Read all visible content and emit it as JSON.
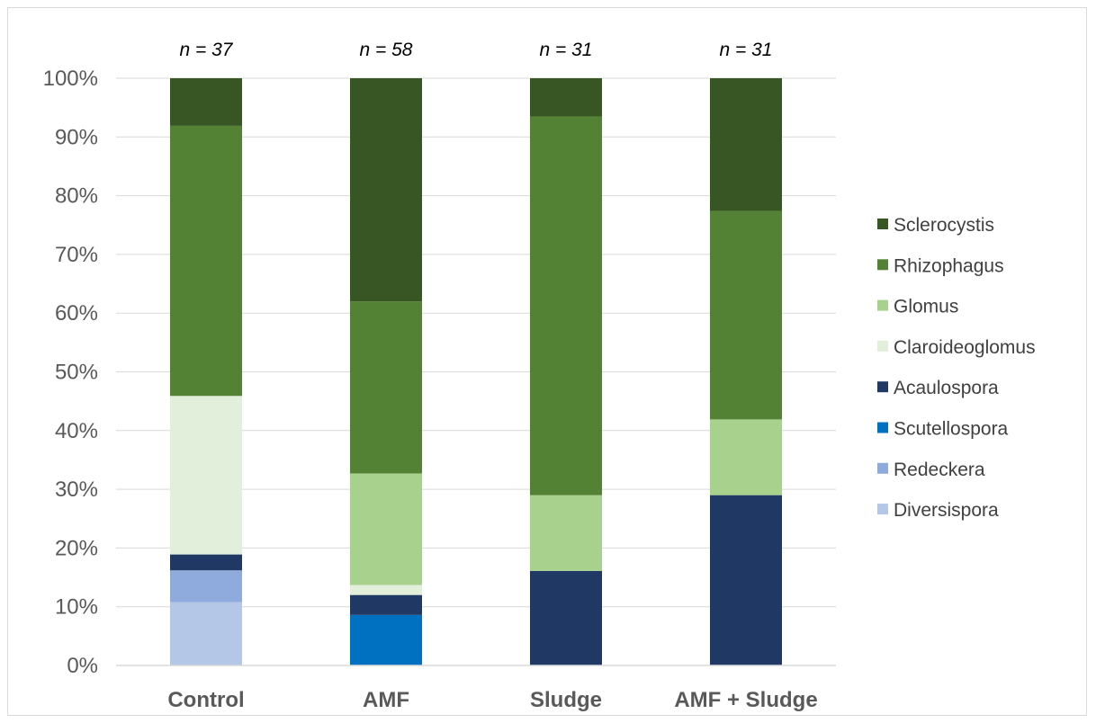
{
  "chart_data": {
    "type": "bar",
    "stacked": true,
    "percent": true,
    "title": "",
    "xlabel": "",
    "ylabel": "",
    "ylim": [
      0,
      100
    ],
    "yticks": [
      "0%",
      "10%",
      "20%",
      "30%",
      "40%",
      "50%",
      "60%",
      "70%",
      "80%",
      "90%",
      "100%"
    ],
    "grid": true,
    "legend_position": "right",
    "categories": [
      "Control",
      "AMF",
      "Sludge",
      "AMF + Sludge"
    ],
    "annotations": [
      "n = 37",
      "n = 58",
      "n = 31",
      "n = 31"
    ],
    "series": [
      {
        "name": "Diversispora",
        "color": "#b4c7e7",
        "values": [
          10.8,
          0,
          0,
          0
        ]
      },
      {
        "name": "Redeckera",
        "color": "#8faadc",
        "values": [
          5.4,
          0,
          0,
          0
        ]
      },
      {
        "name": "Scutellospora",
        "color": "#0070c0",
        "values": [
          0,
          8.6,
          0,
          0
        ]
      },
      {
        "name": "Acaulospora",
        "color": "#203864",
        "values": [
          2.7,
          3.4,
          16.1,
          29.0
        ]
      },
      {
        "name": "Claroideoglomus",
        "color": "#e2efda",
        "values": [
          27.0,
          1.7,
          0,
          0
        ]
      },
      {
        "name": "Glomus",
        "color": "#a9d18e",
        "values": [
          0,
          19.0,
          12.9,
          12.9
        ]
      },
      {
        "name": "Rhizophagus",
        "color": "#548235",
        "values": [
          46.0,
          29.3,
          64.5,
          35.5
        ]
      },
      {
        "name": "Sclerocystis",
        "color": "#375623",
        "values": [
          8.1,
          38.0,
          6.5,
          22.6
        ]
      }
    ]
  }
}
